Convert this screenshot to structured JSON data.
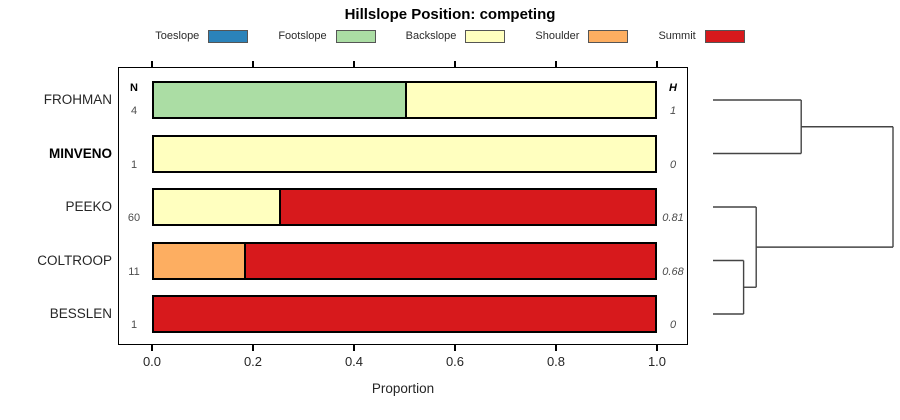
{
  "chart_data": {
    "type": "bar",
    "stacked": true,
    "orientation": "horizontal",
    "title": "Hillslope Position: competing",
    "xlabel": "Proportion",
    "xlim": [
      0,
      1
    ],
    "x_ticks": [
      "0.0",
      "0.2",
      "0.4",
      "0.6",
      "0.8",
      "1.0"
    ],
    "grid": false,
    "legend_position": "top",
    "legend": [
      {
        "label": "Toeslope",
        "color": "#2B83BA"
      },
      {
        "label": "Footslope",
        "color": "#ABDDA4"
      },
      {
        "label": "Backslope",
        "color": "#FFFFBF"
      },
      {
        "label": "Shoulder",
        "color": "#FDAE61"
      },
      {
        "label": "Summit",
        "color": "#D7191C"
      }
    ],
    "columns": {
      "n_header": "N",
      "h_header": "H"
    },
    "rows": [
      {
        "label": "FROHMAN",
        "bold": false,
        "n": "4",
        "h": "1",
        "segments": [
          {
            "category": "Footslope",
            "value": 0.5
          },
          {
            "category": "Backslope",
            "value": 0.5
          }
        ]
      },
      {
        "label": "MINVENO",
        "bold": true,
        "n": "1",
        "h": "0",
        "segments": [
          {
            "category": "Backslope",
            "value": 1.0
          }
        ]
      },
      {
        "label": "PEEKO",
        "bold": false,
        "n": "60",
        "h": "0.81",
        "segments": [
          {
            "category": "Backslope",
            "value": 0.25
          },
          {
            "category": "Summit",
            "value": 0.75
          }
        ]
      },
      {
        "label": "COLTROOP",
        "bold": false,
        "n": "11",
        "h": "0.68",
        "segments": [
          {
            "category": "Shoulder",
            "value": 0.18
          },
          {
            "category": "Summit",
            "value": 0.82
          }
        ]
      },
      {
        "label": "BESSLEN",
        "bold": false,
        "n": "1",
        "h": "0",
        "segments": [
          {
            "category": "Summit",
            "value": 1.0
          }
        ]
      }
    ],
    "dendrogram": {
      "leaves": [
        "FROHMAN",
        "MINVENO",
        "PEEKO",
        "COLTROOP",
        "BESSLEN"
      ],
      "merges": [
        {
          "children": [
            "COLTROOP",
            "BESSLEN"
          ],
          "height": 0.17
        },
        {
          "children": [
            "PEEKO",
            "COLTROOP+BESSLEN"
          ],
          "height": 0.24
        },
        {
          "children": [
            "FROHMAN",
            "MINVENO"
          ],
          "height": 0.49
        },
        {
          "children": [
            "FROHMAN+MINVENO",
            "PEEKO+COLTROOP+BESSLEN"
          ],
          "height": 1.0
        }
      ]
    }
  }
}
